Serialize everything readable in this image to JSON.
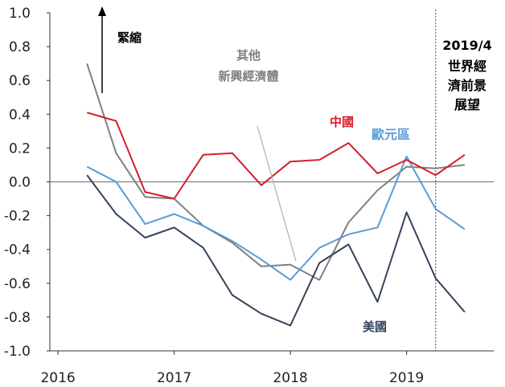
{
  "chart_data": {
    "type": "line",
    "x": [
      2016.25,
      2016.5,
      2016.75,
      2017.0,
      2017.25,
      2017.5,
      2017.75,
      2018.0,
      2018.25,
      2018.5,
      2018.75,
      2019.0,
      2019.25,
      2019.5
    ],
    "series": [
      {
        "name": "中國",
        "color": "#d21f2a",
        "values": [
          0.41,
          0.36,
          -0.06,
          -0.1,
          0.16,
          0.17,
          -0.02,
          0.12,
          0.13,
          0.23,
          0.05,
          0.13,
          0.04,
          0.16
        ]
      },
      {
        "name": "歐元區",
        "color": "#5b9bd5",
        "values": [
          0.09,
          0.0,
          -0.25,
          -0.19,
          -0.26,
          -0.35,
          -0.46,
          -0.58,
          -0.39,
          -0.31,
          -0.27,
          0.15,
          -0.16,
          -0.28
        ]
      },
      {
        "name": "美國",
        "color": "#34425a",
        "values": [
          0.04,
          -0.19,
          -0.33,
          -0.27,
          -0.39,
          -0.67,
          -0.78,
          -0.85,
          -0.48,
          -0.37,
          -0.71,
          -0.18,
          -0.57,
          -0.77
        ]
      },
      {
        "name": "其他 新興經濟體",
        "color": "#808080",
        "values": [
          0.7,
          0.17,
          -0.09,
          -0.1,
          -0.26,
          -0.36,
          -0.5,
          -0.49,
          -0.58,
          -0.24,
          -0.05,
          0.09,
          0.08,
          0.1
        ]
      }
    ],
    "xlim": [
      2015.93,
      2019.75
    ],
    "ylim": [
      -1.0,
      1.0
    ],
    "xticks": [
      2016,
      2017,
      2018,
      2019
    ],
    "yticks": [
      1.0,
      0.8,
      0.6,
      0.4,
      0.2,
      0.0,
      -0.2,
      -0.4,
      -0.6,
      -0.8,
      -1.0
    ],
    "ytick_labels": [
      "1.0",
      "0.8",
      "0.6",
      "0.4",
      "0.2",
      "0.0",
      "-0.2",
      "-0.4",
      "-0.6",
      "-0.8",
      "-1.0"
    ],
    "xtick_labels": [
      "2016",
      "2017",
      "2018",
      "2019"
    ],
    "forecast_divider_x": 2019.25,
    "annotations": {
      "tightening": "緊縮",
      "other_line1": "其他",
      "other_line2": "新興經濟體",
      "china": "中國",
      "euro": "歐元區",
      "us": "美國",
      "outlook_line1": "2019/4",
      "outlook_line2": "世界經",
      "outlook_line3": "濟前景",
      "outlook_line4": "展望"
    },
    "colors": {
      "china": "#d21f2a",
      "euro": "#5b9bd5",
      "us": "#34425a",
      "other": "#808080",
      "zero_line": "#808080",
      "axis": "#333333"
    }
  }
}
